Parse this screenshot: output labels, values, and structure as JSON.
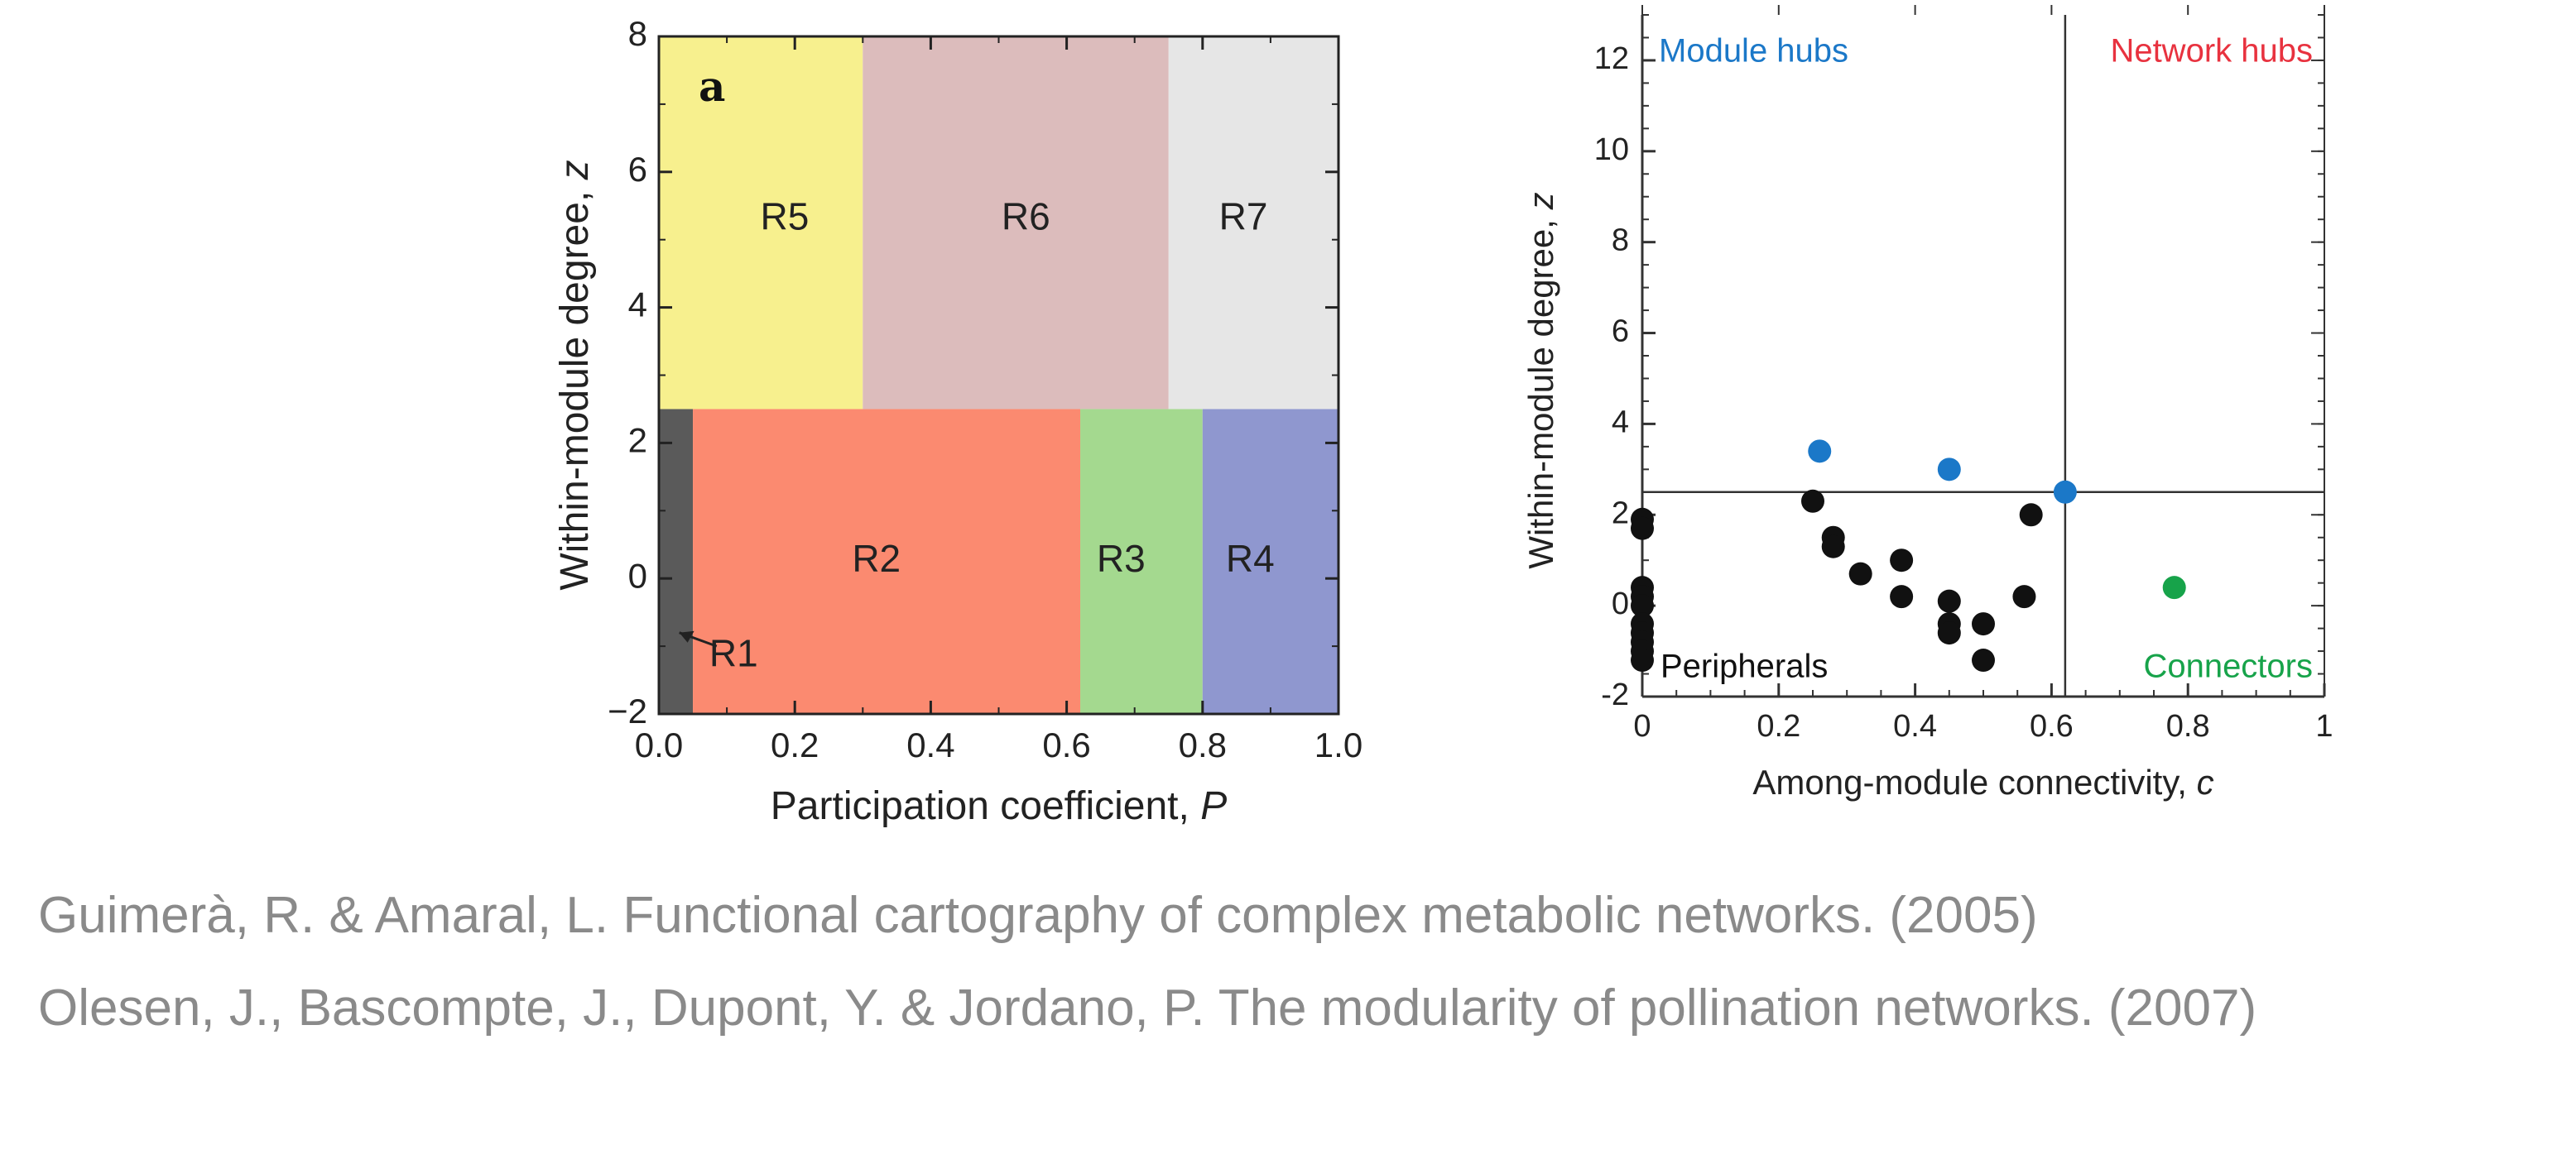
{
  "chart_data": [
    {
      "type": "region-map",
      "panel_label": "a",
      "xlabel": "Participation coefficient, ",
      "xlabel_var": "P",
      "ylabel": "Within-module degree, ",
      "ylabel_var": "z",
      "xlim": [
        0.0,
        1.0
      ],
      "ylim": [
        -2,
        8
      ],
      "xticks": [
        "0.0",
        "0.2",
        "0.4",
        "0.6",
        "0.8",
        "1.0"
      ],
      "yticks": [
        "−2",
        "0",
        "2",
        "4",
        "6",
        "8"
      ],
      "regions": [
        {
          "name": "R1",
          "x0": 0.0,
          "x1": 0.05,
          "y0": -2,
          "y1": 2.5,
          "color": "#5a5a5a"
        },
        {
          "name": "R2",
          "x0": 0.05,
          "x1": 0.62,
          "y0": -2,
          "y1": 2.5,
          "color": "#fb8a70"
        },
        {
          "name": "R3",
          "x0": 0.62,
          "x1": 0.8,
          "y0": -2,
          "y1": 2.5,
          "color": "#a4d98f"
        },
        {
          "name": "R4",
          "x0": 0.8,
          "x1": 1.0,
          "y0": -2,
          "y1": 2.5,
          "color": "#8f97cf"
        },
        {
          "name": "R5",
          "x0": 0.0,
          "x1": 0.3,
          "y0": 2.5,
          "y1": 8,
          "color": "#f7f08e"
        },
        {
          "name": "R6",
          "x0": 0.3,
          "x1": 0.75,
          "y0": 2.5,
          "y1": 8,
          "color": "#dcbcbc"
        },
        {
          "name": "R7",
          "x0": 0.75,
          "x1": 1.0,
          "y0": 2.5,
          "y1": 8,
          "color": "#e6e6e6"
        }
      ],
      "grid": false
    },
    {
      "type": "scatter",
      "xlabel": "Among-module connectivity, ",
      "xlabel_var": "c",
      "ylabel": "Within-module degree, ",
      "ylabel_var": "z",
      "xlim": [
        0,
        1
      ],
      "ylim": [
        -2,
        13
      ],
      "xticks": [
        "0",
        "0.2",
        "0.4",
        "0.6",
        "0.8",
        "1"
      ],
      "yticks": [
        "-2",
        "0",
        "2",
        "4",
        "6",
        "8",
        "10",
        "12"
      ],
      "thresholds": {
        "c": 0.62,
        "z": 2.5
      },
      "quadrant_labels": [
        {
          "text": "Module hubs",
          "color": "#1b78c8"
        },
        {
          "text": "Network hubs",
          "color": "#e8323f"
        },
        {
          "text": "Peripherals",
          "color": "#111111"
        },
        {
          "text": "Connectors",
          "color": "#17a34a"
        }
      ],
      "series": [
        {
          "color": "#111111",
          "points": [
            [
              0.0,
              1.9
            ],
            [
              0.0,
              1.7
            ],
            [
              0.0,
              0.4
            ],
            [
              0.0,
              0.2
            ],
            [
              0.0,
              0.0
            ],
            [
              0.0,
              -0.4
            ],
            [
              0.0,
              -0.6
            ],
            [
              0.0,
              -0.8
            ],
            [
              0.0,
              -1.0
            ],
            [
              0.0,
              -1.2
            ],
            [
              0.25,
              2.3
            ],
            [
              0.28,
              1.5
            ],
            [
              0.28,
              1.3
            ],
            [
              0.32,
              0.7
            ],
            [
              0.38,
              1.0
            ],
            [
              0.38,
              0.2
            ],
            [
              0.45,
              0.1
            ],
            [
              0.45,
              -0.4
            ],
            [
              0.45,
              -0.6
            ],
            [
              0.5,
              -0.4
            ],
            [
              0.5,
              -1.2
            ],
            [
              0.56,
              0.2
            ],
            [
              0.57,
              2.0
            ]
          ]
        },
        {
          "color": "#1b78c8",
          "points": [
            [
              0.26,
              3.4
            ],
            [
              0.45,
              3.0
            ],
            [
              0.62,
              2.5
            ]
          ]
        },
        {
          "color": "#17a34a",
          "points": [
            [
              0.78,
              0.4
            ]
          ]
        }
      ],
      "grid": false
    }
  ],
  "references": [
    "Guimerà, R. & Amaral, L. Functional cartography of complex metabolic networks. (2005)",
    "Olesen, J., Bascompte, J., Dupont, Y. & Jordano, P. The modularity of pollination networks. (2007)"
  ]
}
